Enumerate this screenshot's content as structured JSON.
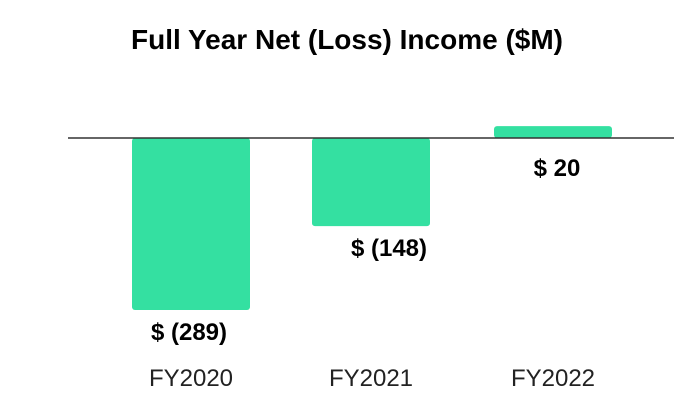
{
  "chart_data": {
    "type": "bar",
    "title": "Full Year Net (Loss) Income ($M)",
    "xlabel": "",
    "ylabel": "",
    "categories": [
      "FY2020",
      "FY2021",
      "FY2022"
    ],
    "values": [
      -289,
      -148,
      20
    ],
    "data_labels": [
      "$ (289)",
      "$ (148)",
      "$ 20"
    ],
    "ylim": [
      -300,
      40
    ],
    "grid": false,
    "legend": "none",
    "colors": {
      "bar": "#34e0a1",
      "baseline": "#333333"
    }
  }
}
